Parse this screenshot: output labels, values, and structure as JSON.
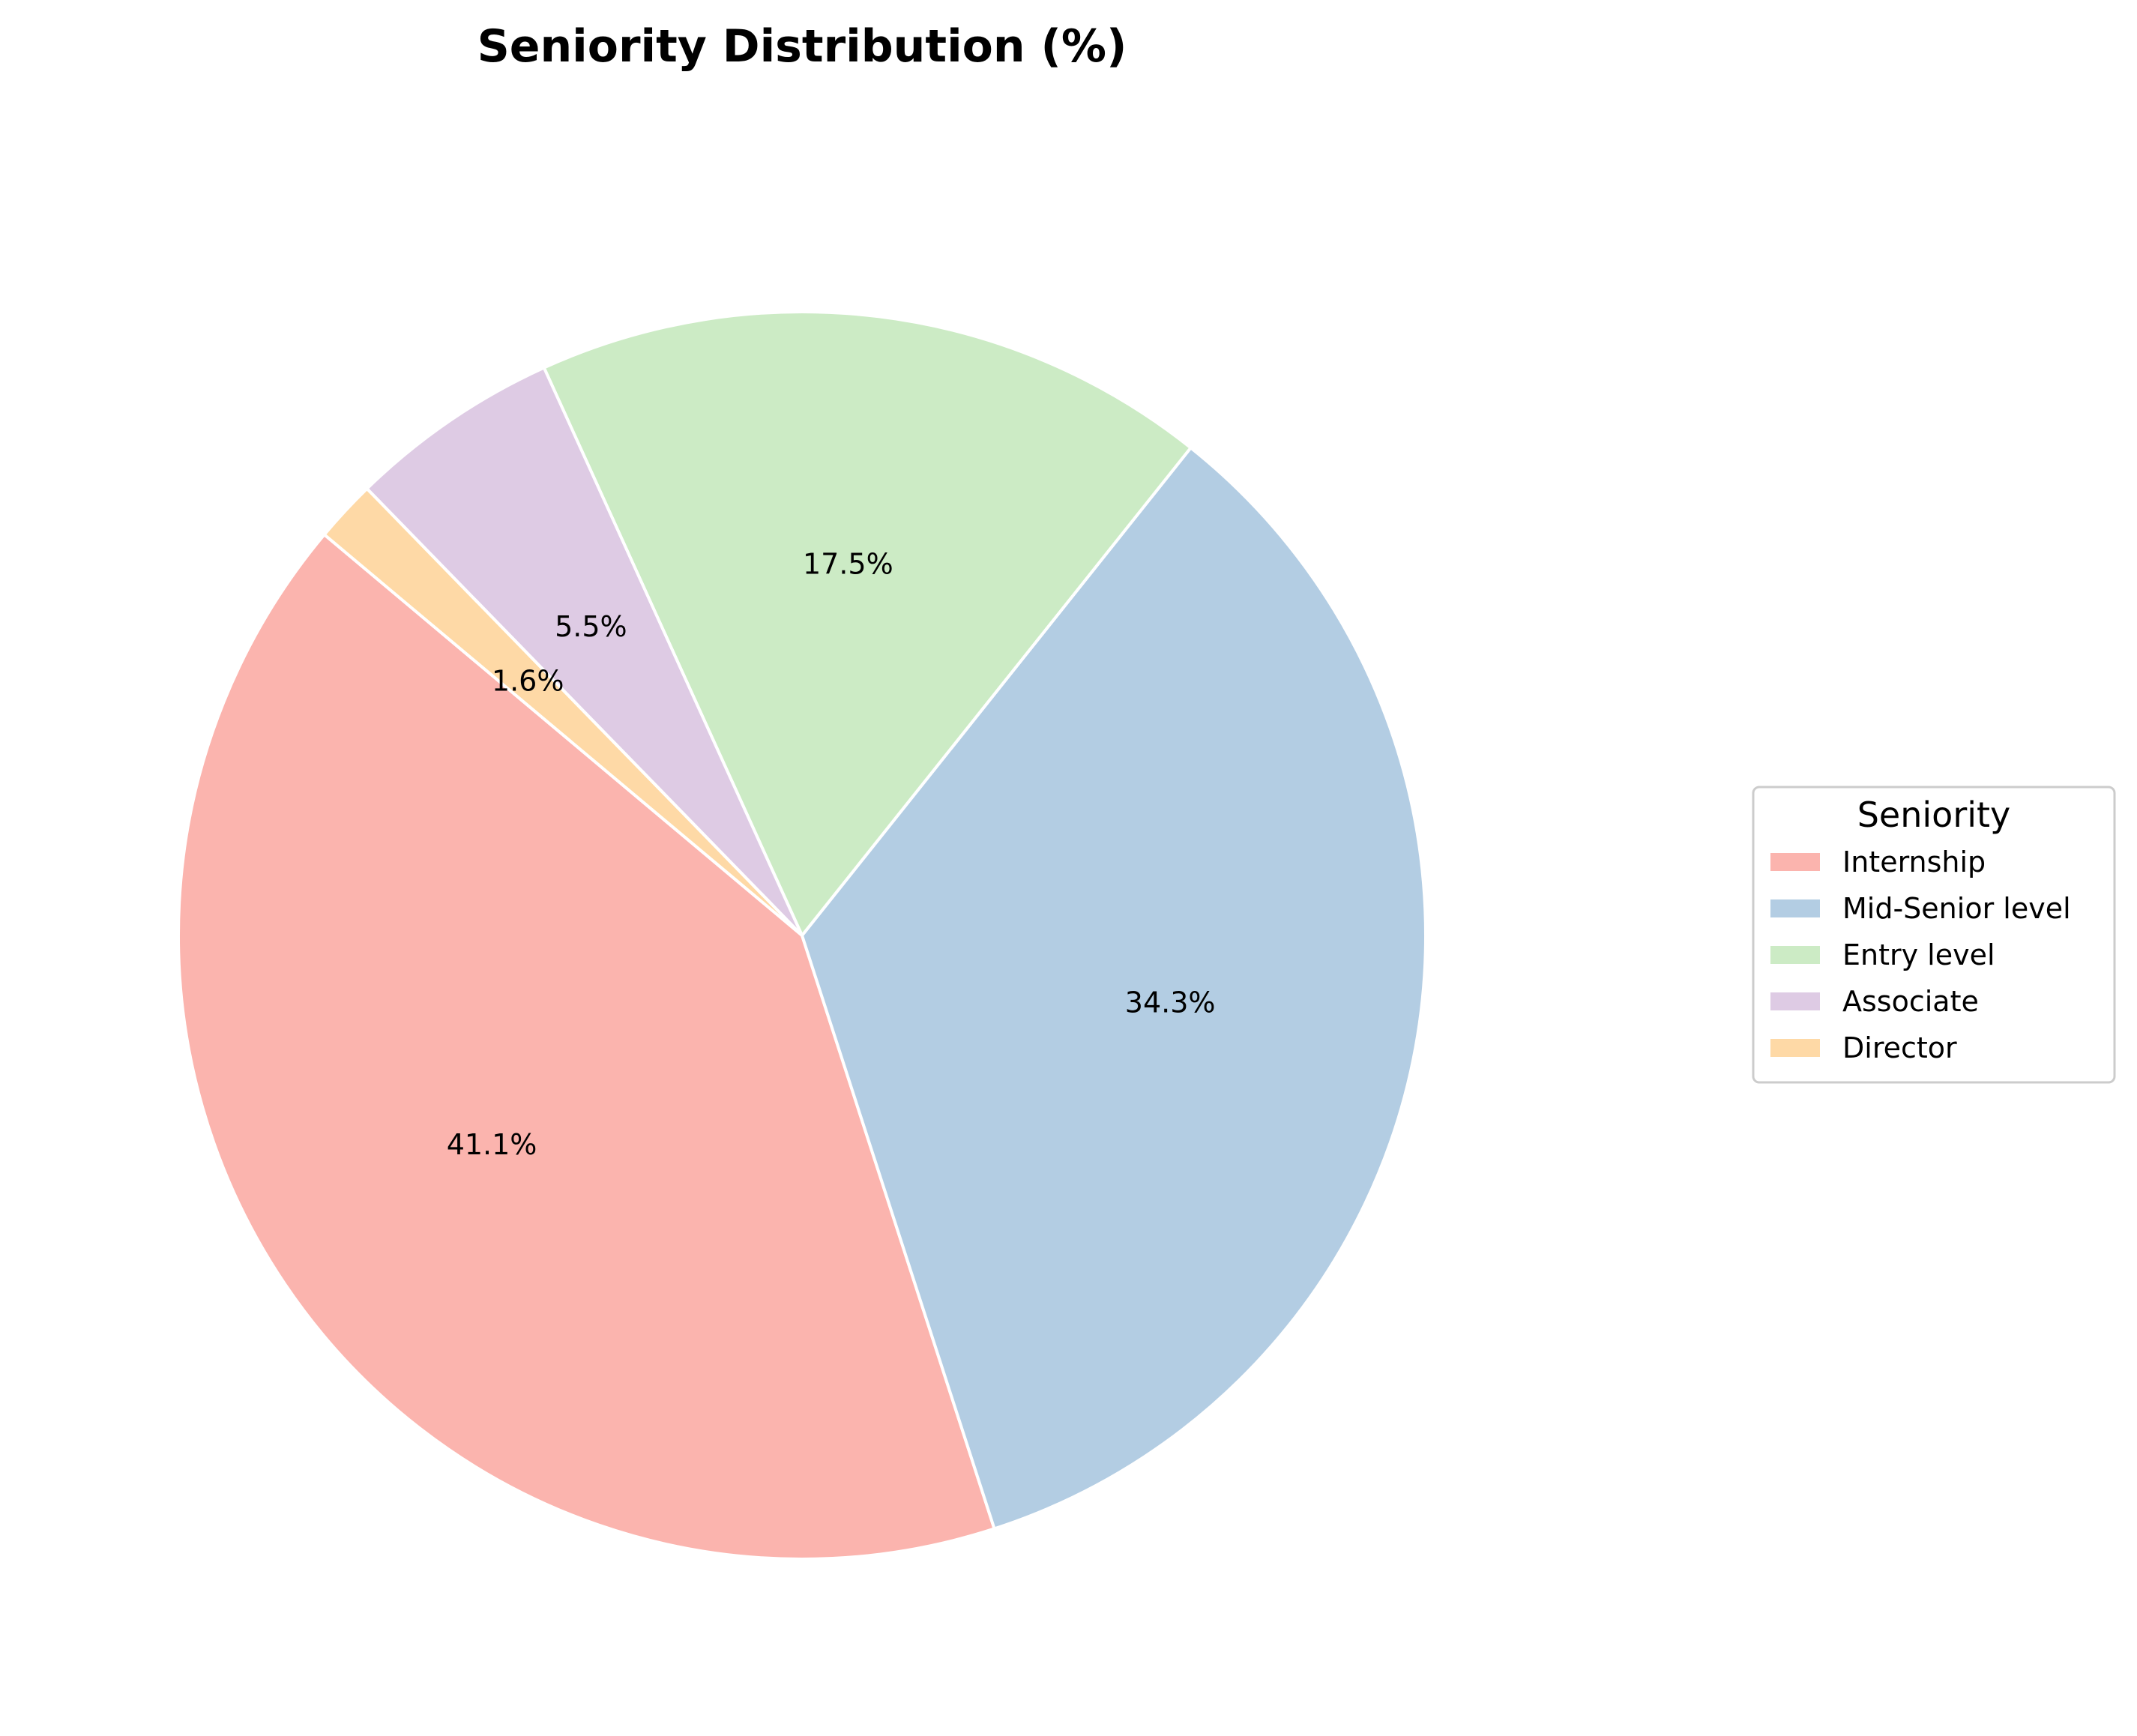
{
  "chart_data": {
    "type": "pie",
    "title": "Seniority Distribution (%)",
    "slices": [
      {
        "label": "Internship",
        "value": 41.1,
        "pct_label": "41.1%",
        "color": "#fbb4ae"
      },
      {
        "label": "Mid-Senior level",
        "value": 34.3,
        "pct_label": "34.3%",
        "color": "#b3cde3"
      },
      {
        "label": "Entry level",
        "value": 17.5,
        "pct_label": "17.5%",
        "color": "#ccebc5"
      },
      {
        "label": "Associate",
        "value": 5.5,
        "pct_label": "5.5%",
        "color": "#decbe4"
      },
      {
        "label": "Director",
        "value": 1.6,
        "pct_label": "1.6%",
        "color": "#fed9a6"
      }
    ],
    "start_angle_deg": 140,
    "direction": "counterclockwise",
    "wedge_edge_color": "#ffffff",
    "legend": {
      "title": "Seniority",
      "placement": "right"
    }
  }
}
